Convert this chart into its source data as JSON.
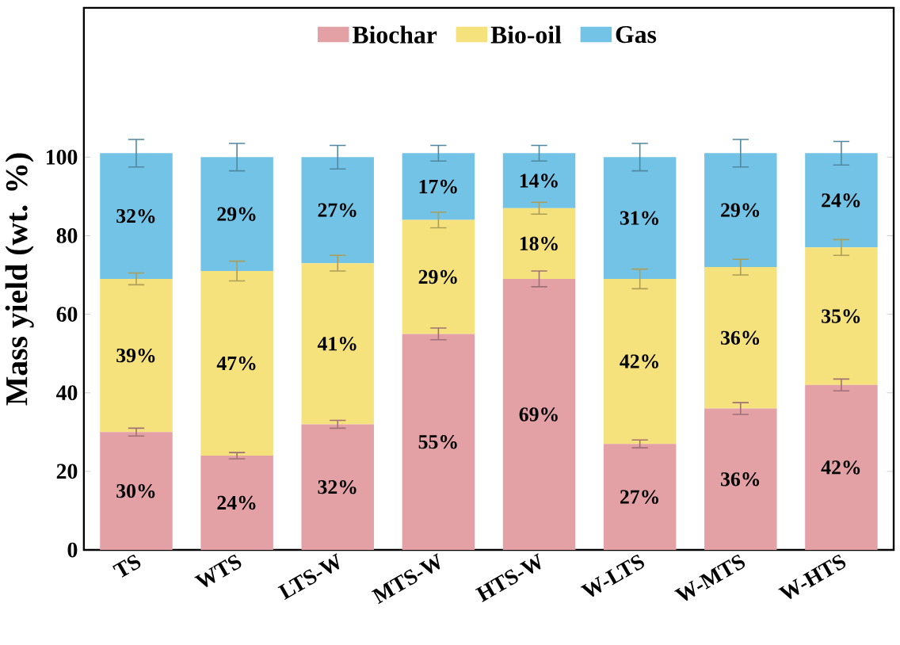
{
  "chart_data": {
    "type": "bar",
    "stacked": true,
    "ylabel": "Mass yield (wt. %)",
    "categories": [
      "TS",
      "WTS",
      "LTS-W",
      "MTS-W",
      "HTS-W",
      "W-LTS",
      "W-MTS",
      "W-HTS"
    ],
    "ylim": [
      0,
      138
    ],
    "yticks": [
      0,
      20,
      40,
      60,
      80,
      100
    ],
    "legend": "top",
    "series": [
      {
        "name": "Biochar",
        "color": "#e3a1a6",
        "values": [
          30,
          24,
          32,
          55,
          69,
          27,
          36,
          42
        ],
        "value_labels": [
          "30%",
          "24%",
          "32%",
          "55%",
          "69%",
          "27%",
          "36%",
          "42%"
        ],
        "errors": [
          1,
          0.8,
          1,
          1.5,
          2,
          1,
          1.5,
          1.5
        ]
      },
      {
        "name": "Bio-oil",
        "color": "#f6e27c",
        "values": [
          39,
          47,
          41,
          29,
          18,
          42,
          36,
          35
        ],
        "value_labels": [
          "39%",
          "47%",
          "41%",
          "29%",
          "18%",
          "42%",
          "36%",
          "35%"
        ],
        "errors": [
          1.5,
          2.5,
          2,
          2,
          1.5,
          2.5,
          2,
          2
        ]
      },
      {
        "name": "Gas",
        "color": "#72c3e6",
        "values": [
          32,
          29,
          27,
          17,
          14,
          31,
          29,
          24
        ],
        "value_labels": [
          "32%",
          "29%",
          "27%",
          "17%",
          "14%",
          "31%",
          "29%",
          "24%"
        ],
        "errors": [
          3.5,
          3.5,
          3,
          2,
          2,
          3.5,
          3.5,
          3
        ]
      }
    ]
  }
}
